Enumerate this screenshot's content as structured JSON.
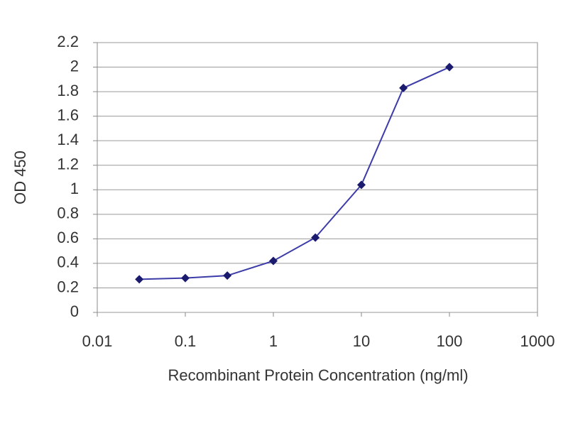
{
  "chart_data": {
    "type": "line",
    "x_label": "Recombinant Protein Concentration (ng/ml)",
    "y_label": "OD 450",
    "x": [
      0.03,
      0.1,
      0.3,
      1,
      3,
      10,
      30,
      100
    ],
    "values": [
      0.27,
      0.28,
      0.3,
      0.42,
      0.61,
      1.04,
      1.83,
      2.0
    ],
    "color": "#3c3ca8",
    "marker_color": "#1a1a6e",
    "xscale": "log",
    "xlim": [
      0.01,
      1000
    ],
    "xticks": [
      0.01,
      0.1,
      1,
      10,
      100,
      1000
    ],
    "ylim": [
      0,
      2.2
    ],
    "yticks": [
      0,
      0.2,
      0.4,
      0.6,
      0.8,
      1,
      1.2,
      1.4,
      1.6,
      1.8,
      2,
      2.2
    ],
    "grid": true
  }
}
